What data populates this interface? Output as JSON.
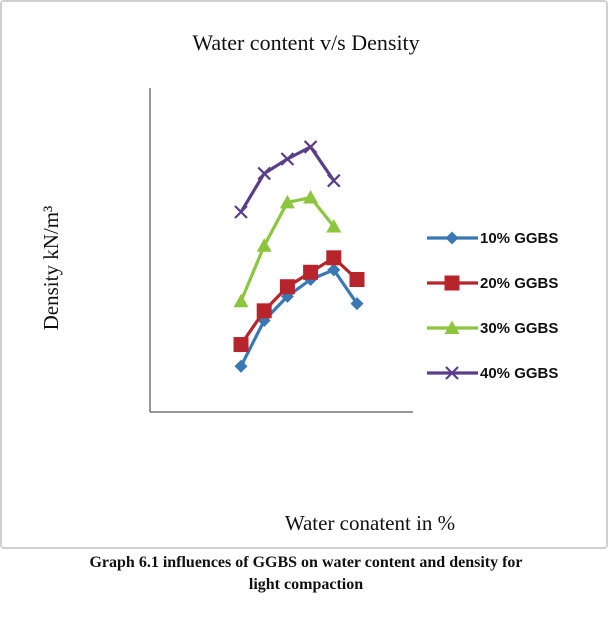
{
  "chart_data": {
    "type": "line",
    "title": "Water content v/s Density",
    "xlabel": "Water conatent in %",
    "ylabel": "Density kN/m³",
    "x": [
      1,
      2,
      3,
      4,
      5,
      6
    ],
    "ylim": [
      0,
      100
    ],
    "grid": false,
    "legend_position": "right",
    "series": [
      {
        "name": "10% GGBS",
        "color": "#3a78b5",
        "marker": "diamond",
        "values": [
          14,
          33,
          43,
          50,
          54,
          40
        ]
      },
      {
        "name": "20% GGBS",
        "color": "#b8242c",
        "marker": "square",
        "values": [
          23,
          37,
          47,
          53,
          59,
          50
        ]
      },
      {
        "name": "30% GGBS",
        "color": "#8cc63f",
        "marker": "triangle",
        "values": [
          41,
          64,
          82,
          84,
          72,
          null
        ]
      },
      {
        "name": "40% GGBS",
        "color": "#5b3e8a",
        "marker": "x",
        "values": [
          78,
          94,
          100,
          105,
          91,
          null
        ]
      }
    ]
  },
  "caption": {
    "line1": "Graph 6.1 influences of GGBS on water content and density for",
    "line2": "light compaction"
  }
}
